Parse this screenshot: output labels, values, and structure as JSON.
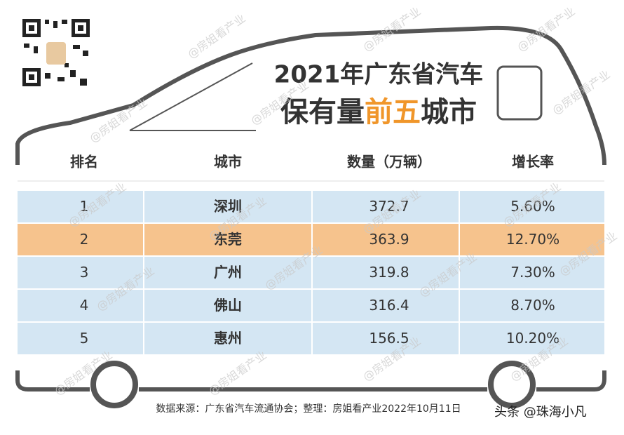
{
  "title": {
    "line1": "2021年广东省汽车",
    "line2": [
      "保有量",
      "前五",
      "城市"
    ]
  },
  "table": {
    "headers": [
      "排名",
      "城市",
      "数量（万辆）",
      "增长率"
    ],
    "rows": [
      [
        "1",
        "深圳",
        "372.7",
        "5.60%"
      ],
      [
        "2",
        "东莞",
        "363.9",
        "12.70%"
      ],
      [
        "3",
        "广州",
        "319.8",
        "7.30%"
      ],
      [
        "4",
        "佛山",
        "316.4",
        "8.70%"
      ],
      [
        "5",
        "惠州",
        "156.5",
        "10.20%"
      ]
    ],
    "highlight_row": 1
  },
  "source": "数据来源：广东省汽车流通协会；整理：房姐看产业2022年10月11日",
  "watermark": "@房姐看产业",
  "credit": "头条 @珠海小凡"
}
